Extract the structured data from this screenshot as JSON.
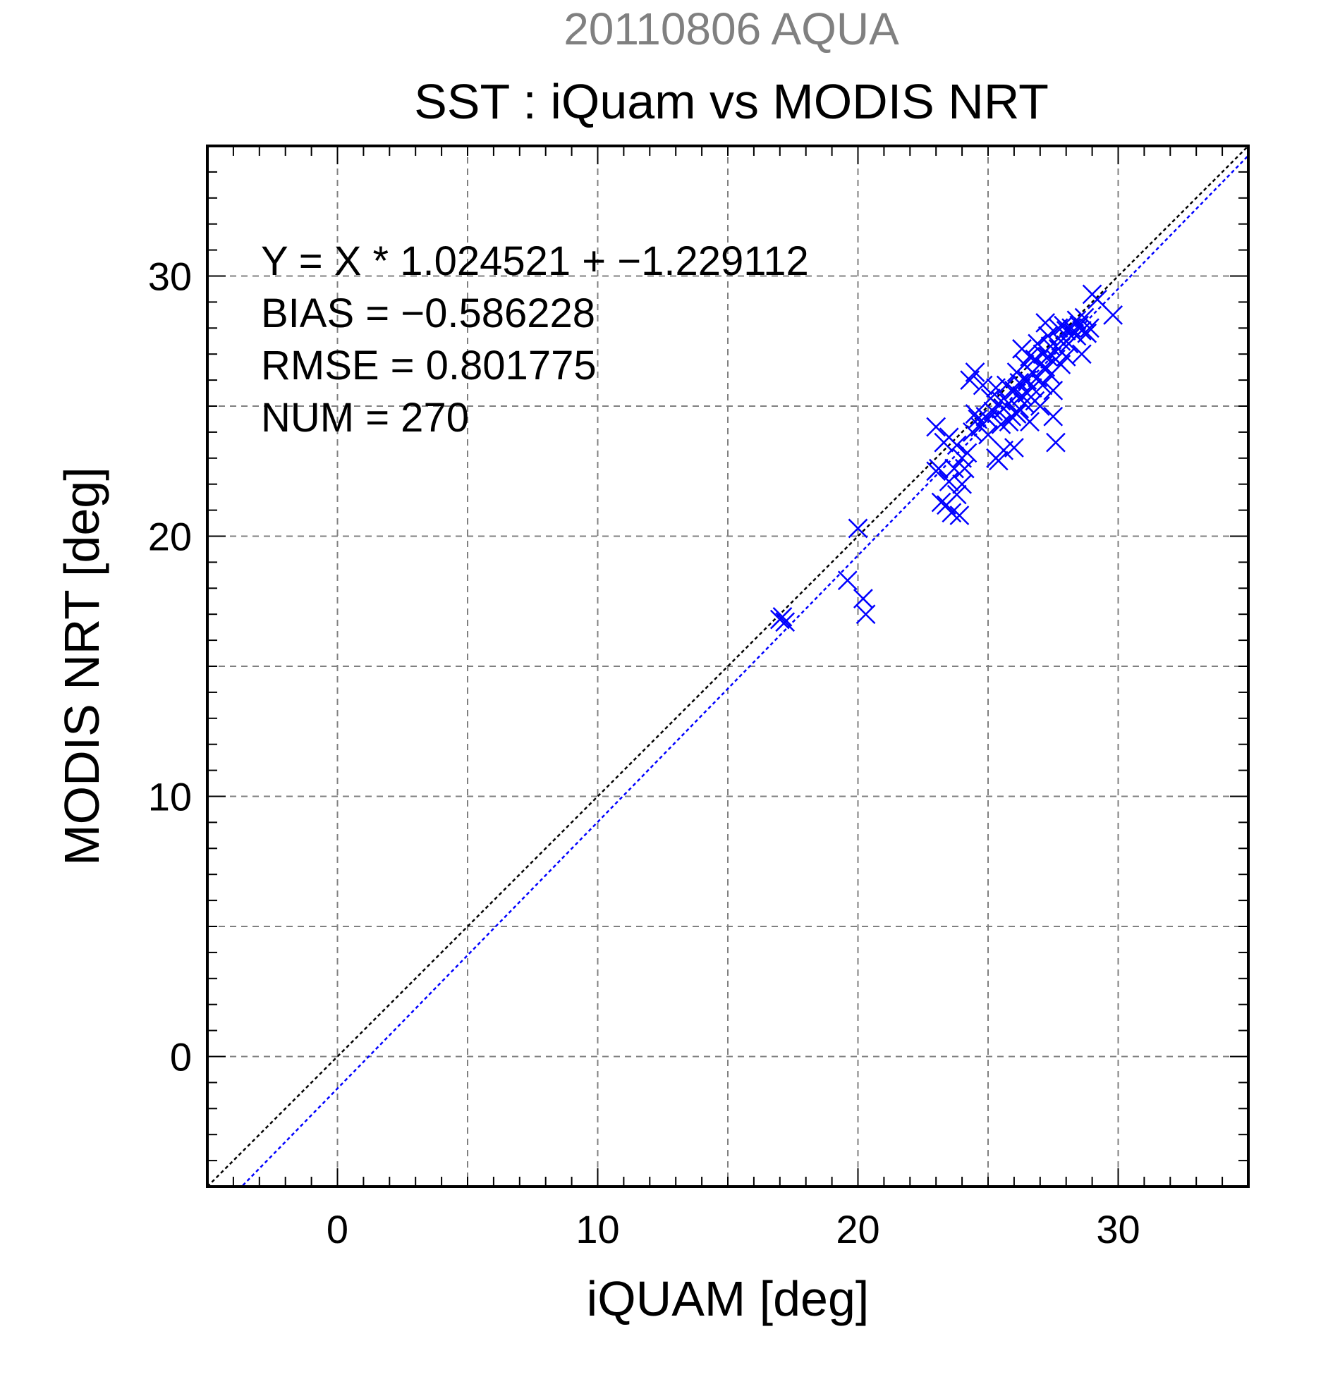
{
  "chart_data": {
    "type": "scatter",
    "supertitle": "20110806 AQUA",
    "title": "SST : iQuam vs MODIS NRT",
    "xlabel": "iQUAM [deg]",
    "ylabel": "MODIS NRT [deg]",
    "xlim": [
      -5,
      35
    ],
    "ylim": [
      -5,
      35
    ],
    "xticks": [
      0,
      10,
      20,
      30
    ],
    "yticks": [
      0,
      10,
      20,
      30
    ],
    "grid": true,
    "stats": {
      "equation": "Y = X * 1.024521 + −1.229112",
      "bias": "BIAS = −0.586228",
      "rmse": "RMSE = 0.801775",
      "num": "NUM = 270"
    },
    "lines": [
      {
        "kind": "one-to-one",
        "slope": 1,
        "intercept": 0,
        "color": "#000000",
        "dashed": true
      },
      {
        "kind": "regression",
        "slope": 1.024521,
        "intercept": -1.229112,
        "color": "#0000ff",
        "dashed": true
      }
    ],
    "colors": {
      "markers": "#0000ff",
      "supertitle": "#808080",
      "text": "#000000",
      "grid": "#808080"
    },
    "marker": "x",
    "points": [
      [
        17.0,
        16.8
      ],
      [
        17.2,
        16.7
      ],
      [
        17.1,
        16.9
      ],
      [
        19.6,
        18.3
      ],
      [
        20.0,
        20.3
      ],
      [
        20.2,
        17.6
      ],
      [
        20.3,
        17.0
      ],
      [
        23.0,
        24.2
      ],
      [
        23.0,
        22.5
      ],
      [
        23.1,
        22.6
      ],
      [
        23.2,
        21.3
      ],
      [
        23.3,
        23.6
      ],
      [
        23.4,
        21.2
      ],
      [
        23.5,
        23.8
      ],
      [
        23.5,
        22.1
      ],
      [
        23.6,
        20.9
      ],
      [
        23.7,
        22.6
      ],
      [
        23.8,
        23.5
      ],
      [
        23.8,
        21.6
      ],
      [
        23.9,
        20.8
      ],
      [
        24.0,
        23.0
      ],
      [
        24.0,
        22.0
      ],
      [
        24.1,
        22.6
      ],
      [
        24.2,
        23.2
      ],
      [
        24.4,
        24.0
      ],
      [
        24.3,
        26.0
      ],
      [
        24.5,
        26.3
      ],
      [
        24.5,
        24.7
      ],
      [
        24.6,
        24.5
      ],
      [
        24.7,
        24.2
      ],
      [
        24.8,
        25.8
      ],
      [
        24.9,
        24.6
      ],
      [
        25.0,
        24.5
      ],
      [
        25.0,
        23.9
      ],
      [
        25.1,
        25.3
      ],
      [
        25.2,
        24.8
      ],
      [
        25.3,
        23.0
      ],
      [
        25.3,
        25.7
      ],
      [
        25.4,
        22.9
      ],
      [
        25.5,
        24.3
      ],
      [
        25.5,
        25.2
      ],
      [
        25.6,
        23.3
      ],
      [
        25.6,
        24.9
      ],
      [
        25.7,
        25.8
      ],
      [
        25.8,
        24.4
      ],
      [
        25.8,
        25.1
      ],
      [
        25.9,
        24.6
      ],
      [
        26.0,
        23.4
      ],
      [
        26.0,
        25.6
      ],
      [
        26.1,
        24.7
      ],
      [
        26.1,
        26.3
      ],
      [
        26.2,
        25.9
      ],
      [
        26.2,
        24.9
      ],
      [
        26.3,
        25.4
      ],
      [
        26.3,
        27.2
      ],
      [
        26.4,
        26.6
      ],
      [
        26.4,
        25.1
      ],
      [
        26.5,
        26.0
      ],
      [
        26.5,
        25.5
      ],
      [
        26.6,
        26.9
      ],
      [
        26.6,
        24.4
      ],
      [
        26.7,
        26.3
      ],
      [
        26.7,
        25.7
      ],
      [
        26.8,
        26.8
      ],
      [
        26.8,
        25.2
      ],
      [
        26.9,
        27.4
      ],
      [
        26.9,
        26.1
      ],
      [
        27.0,
        26.6
      ],
      [
        27.0,
        25.0
      ],
      [
        27.1,
        27.0
      ],
      [
        27.1,
        25.8
      ],
      [
        27.2,
        26.5
      ],
      [
        27.2,
        28.2
      ],
      [
        27.3,
        27.7
      ],
      [
        27.3,
        26.9
      ],
      [
        27.4,
        26.2
      ],
      [
        27.4,
        27.3
      ],
      [
        27.5,
        24.6
      ],
      [
        27.5,
        25.6
      ],
      [
        27.6,
        26.8
      ],
      [
        27.6,
        23.6
      ],
      [
        27.7,
        27.2
      ],
      [
        27.7,
        28.0
      ],
      [
        27.8,
        26.6
      ],
      [
        27.8,
        27.5
      ],
      [
        27.9,
        28.1
      ],
      [
        28.0,
        27.9
      ],
      [
        28.0,
        26.9
      ],
      [
        28.1,
        27.4
      ],
      [
        28.2,
        28.0
      ],
      [
        28.3,
        27.8
      ],
      [
        28.4,
        28.3
      ],
      [
        28.4,
        27.7
      ],
      [
        28.5,
        28.1
      ],
      [
        28.6,
        27.9
      ],
      [
        28.6,
        27.0
      ],
      [
        28.7,
        28.4
      ],
      [
        28.8,
        27.8
      ],
      [
        28.9,
        28.0
      ],
      [
        29.0,
        29.3
      ],
      [
        29.2,
        29.1
      ],
      [
        29.8,
        28.5
      ]
    ]
  }
}
